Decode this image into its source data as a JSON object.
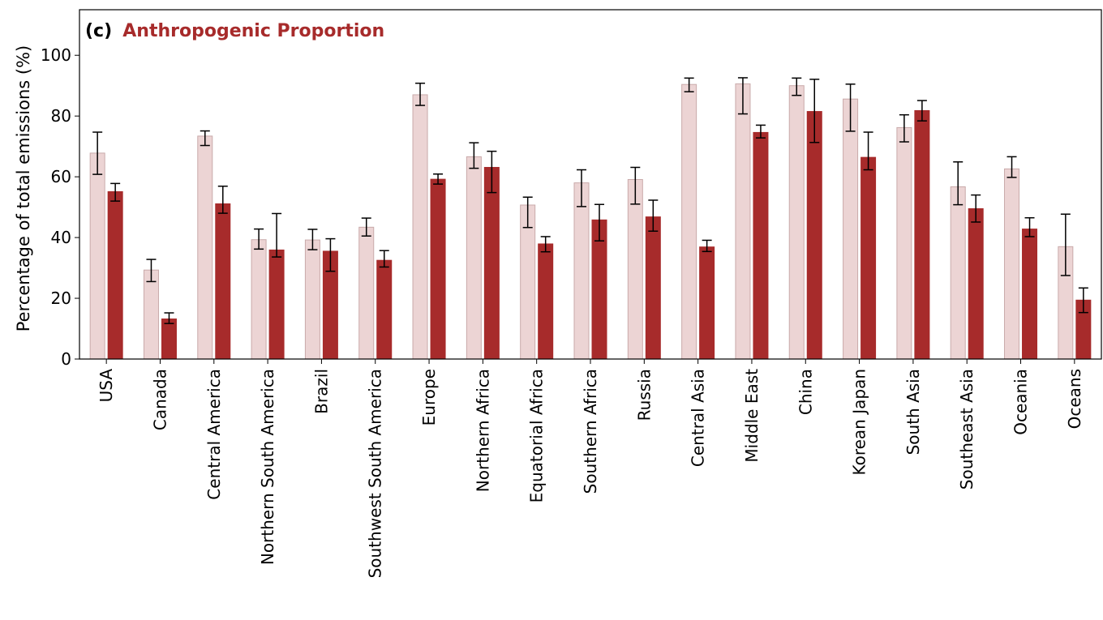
{
  "chart_data": {
    "type": "bar",
    "title_prefix": "(c)",
    "title": "Anthropogenic Proportion",
    "xlabel": "",
    "ylabel": "Percentage of total emissions (%)",
    "ylim": [
      0,
      115
    ],
    "yticks": [
      0,
      20,
      40,
      60,
      80,
      100
    ],
    "grid": false,
    "categories": [
      "USA",
      "Canada",
      "Central America",
      "Northern South America",
      "Brazil",
      "Southwest South America",
      "Europe",
      "Northern Africa",
      "Equatorial Africa",
      "Southern Africa",
      "Russia",
      "Central Asia",
      "Middle East",
      "China",
      "Korean Japan",
      "South Asia",
      "Southeast Asia",
      "Oceania",
      "Oceans"
    ],
    "series": [
      {
        "color": "#ecd4d4",
        "edge": "#c9aaaa",
        "values": [
          67.8,
          29.3,
          73.4,
          39.3,
          39.2,
          43.4,
          87.0,
          66.6,
          50.7,
          58.0,
          59.1,
          90.4,
          90.6,
          90.0,
          85.6,
          76.2,
          56.7,
          62.6,
          37.0
        ],
        "err_low": [
          60.8,
          25.5,
          70.3,
          36.2,
          36.0,
          40.5,
          83.5,
          62.8,
          43.3,
          50.2,
          51.0,
          88.0,
          80.7,
          86.8,
          75.0,
          71.5,
          50.8,
          59.8,
          27.5
        ],
        "err_high": [
          74.7,
          32.8,
          75.1,
          42.8,
          42.7,
          46.4,
          90.8,
          71.2,
          53.3,
          62.3,
          63.1,
          92.5,
          92.6,
          92.5,
          90.5,
          80.4,
          64.9,
          66.6,
          47.7
        ]
      },
      {
        "color": "#a72b2b",
        "edge": "#a72b2b",
        "values": [
          55.1,
          13.2,
          51.1,
          35.9,
          35.5,
          32.5,
          59.2,
          63.1,
          37.9,
          45.8,
          46.8,
          36.9,
          74.6,
          81.5,
          66.4,
          81.8,
          49.5,
          42.8,
          19.4
        ],
        "err_low": [
          52.0,
          11.7,
          48.0,
          33.6,
          28.9,
          30.3,
          57.6,
          54.8,
          35.3,
          38.9,
          42.1,
          35.4,
          72.8,
          71.3,
          62.3,
          78.4,
          45.1,
          40.3,
          15.3
        ],
        "err_high": [
          57.8,
          15.2,
          56.9,
          47.9,
          39.6,
          35.7,
          60.9,
          68.4,
          40.3,
          50.9,
          52.3,
          39.1,
          77.0,
          92.1,
          74.7,
          85.1,
          54.0,
          46.5,
          23.4
        ]
      }
    ]
  }
}
